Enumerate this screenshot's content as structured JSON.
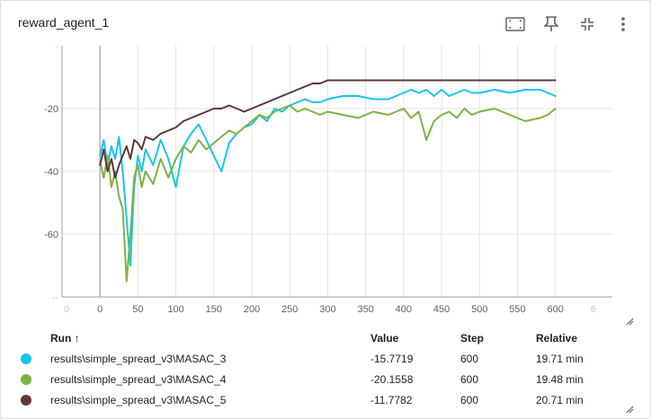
{
  "card": {
    "title": "reward_agent_1"
  },
  "toolbar": {
    "items": [
      {
        "name": "fit-domain-icon"
      },
      {
        "name": "pin-icon"
      },
      {
        "name": "collapse-icon"
      },
      {
        "name": "more-vert-icon"
      }
    ]
  },
  "colors": {
    "MASAC_3": "#1ac2ee",
    "MASAC_4": "#7ab342",
    "MASAC_5": "#5c3838",
    "grid": "#e4e4e4",
    "axis": "#9e9e9e"
  },
  "chart_data": {
    "type": "line",
    "title": "",
    "xlabel": "",
    "ylabel": "",
    "xlim": [
      -50,
      675
    ],
    "ylim": [
      -80,
      0
    ],
    "x_ticks": [
      0,
      50,
      100,
      150,
      200,
      250,
      300,
      350,
      400,
      450,
      500,
      550,
      600
    ],
    "x_ticks_faded_left": "0",
    "x_ticks_faded_right": "6",
    "y_ticks": [
      -20,
      -40,
      -60
    ],
    "y_tick_labels": [
      "-20",
      "-40",
      "-60"
    ],
    "y_top_label": "-",
    "y_bottom_label": "--",
    "grid": true,
    "series": [
      {
        "name": "results\\simple_spread_v3\\MASAC_3",
        "x": [
          0,
          5,
          10,
          15,
          20,
          25,
          30,
          35,
          40,
          45,
          50,
          55,
          60,
          70,
          80,
          90,
          100,
          110,
          120,
          130,
          140,
          150,
          160,
          170,
          180,
          190,
          200,
          210,
          220,
          230,
          240,
          250,
          260,
          270,
          280,
          290,
          300,
          320,
          340,
          360,
          380,
          400,
          410,
          420,
          430,
          440,
          450,
          460,
          470,
          480,
          490,
          500,
          520,
          540,
          560,
          580,
          590,
          600
        ],
        "y": [
          -35,
          -30,
          -38,
          -32,
          -36,
          -29,
          -40,
          -55,
          -70,
          -45,
          -35,
          -40,
          -33,
          -38,
          -30,
          -36,
          -45,
          -32,
          -28,
          -25,
          -30,
          -35,
          -40,
          -31,
          -28,
          -26,
          -25,
          -22,
          -24,
          -20,
          -21,
          -19,
          -18,
          -17,
          -18,
          -18,
          -17,
          -16,
          -16,
          -17,
          -17,
          -15,
          -14,
          -15,
          -14,
          -16,
          -14,
          -16,
          -15,
          -14,
          -15,
          -15,
          -14,
          -15,
          -14,
          -14,
          -15,
          -16
        ]
      },
      {
        "name": "results\\simple_spread_v3\\MASAC_4",
        "x": [
          0,
          5,
          10,
          15,
          20,
          25,
          30,
          35,
          40,
          45,
          50,
          55,
          60,
          70,
          80,
          90,
          100,
          110,
          120,
          130,
          140,
          150,
          160,
          170,
          180,
          190,
          200,
          210,
          220,
          230,
          240,
          250,
          260,
          270,
          280,
          290,
          300,
          320,
          340,
          360,
          380,
          400,
          410,
          420,
          430,
          440,
          450,
          460,
          470,
          480,
          490,
          500,
          520,
          540,
          560,
          580,
          590,
          600
        ],
        "y": [
          -37,
          -42,
          -35,
          -45,
          -40,
          -48,
          -52,
          -75,
          -60,
          -42,
          -38,
          -45,
          -40,
          -44,
          -36,
          -42,
          -36,
          -32,
          -34,
          -30,
          -33,
          -31,
          -29,
          -27,
          -28,
          -26,
          -24,
          -22,
          -23,
          -21,
          -20,
          -19,
          -21,
          -20,
          -21,
          -22,
          -21,
          -22,
          -23,
          -21,
          -22,
          -20,
          -23,
          -21,
          -30,
          -24,
          -22,
          -21,
          -23,
          -20,
          -22,
          -21,
          -20,
          -22,
          -24,
          -23,
          -22,
          -20
        ]
      },
      {
        "name": "results\\simple_spread_v3\\MASAC_5",
        "x": [
          0,
          5,
          10,
          15,
          20,
          25,
          30,
          35,
          40,
          45,
          50,
          55,
          60,
          70,
          80,
          90,
          100,
          110,
          120,
          130,
          140,
          150,
          160,
          170,
          180,
          190,
          200,
          210,
          220,
          230,
          240,
          250,
          260,
          270,
          280,
          290,
          300,
          320,
          340,
          360,
          380,
          400,
          410,
          420,
          430,
          440,
          450,
          460,
          470,
          480,
          490,
          500,
          520,
          540,
          560,
          580,
          590,
          600
        ],
        "y": [
          -38,
          -33,
          -40,
          -36,
          -42,
          -38,
          -35,
          -32,
          -36,
          -30,
          -31,
          -33,
          -29,
          -30,
          -28,
          -27,
          -26,
          -24,
          -23,
          -22,
          -21,
          -20,
          -20,
          -19,
          -20,
          -21,
          -20,
          -19,
          -18,
          -17,
          -16,
          -15,
          -14,
          -13,
          -12,
          -12,
          -11,
          -11,
          -11,
          -11,
          -11,
          -11,
          -11,
          -11,
          -11,
          -11,
          -11,
          -11,
          -11,
          -11,
          -11,
          -11,
          -11,
          -11,
          -11,
          -11,
          -11,
          -11
        ]
      }
    ]
  },
  "runs_table": {
    "headers": {
      "run": "Run ↑",
      "value": "Value",
      "step": "Step",
      "relative": "Relative"
    },
    "rows": [
      {
        "run": "results\\simple_spread_v3\\MASAC_3",
        "value": "-15.7719",
        "step": "600",
        "relative": "19.71 min",
        "color_key": "MASAC_3"
      },
      {
        "run": "results\\simple_spread_v3\\MASAC_4",
        "value": "-20.1558",
        "step": "600",
        "relative": "19.48 min",
        "color_key": "MASAC_4"
      },
      {
        "run": "results\\simple_spread_v3\\MASAC_5",
        "value": "-11.7782",
        "step": "600",
        "relative": "20.71 min",
        "color_key": "MASAC_5"
      }
    ]
  }
}
